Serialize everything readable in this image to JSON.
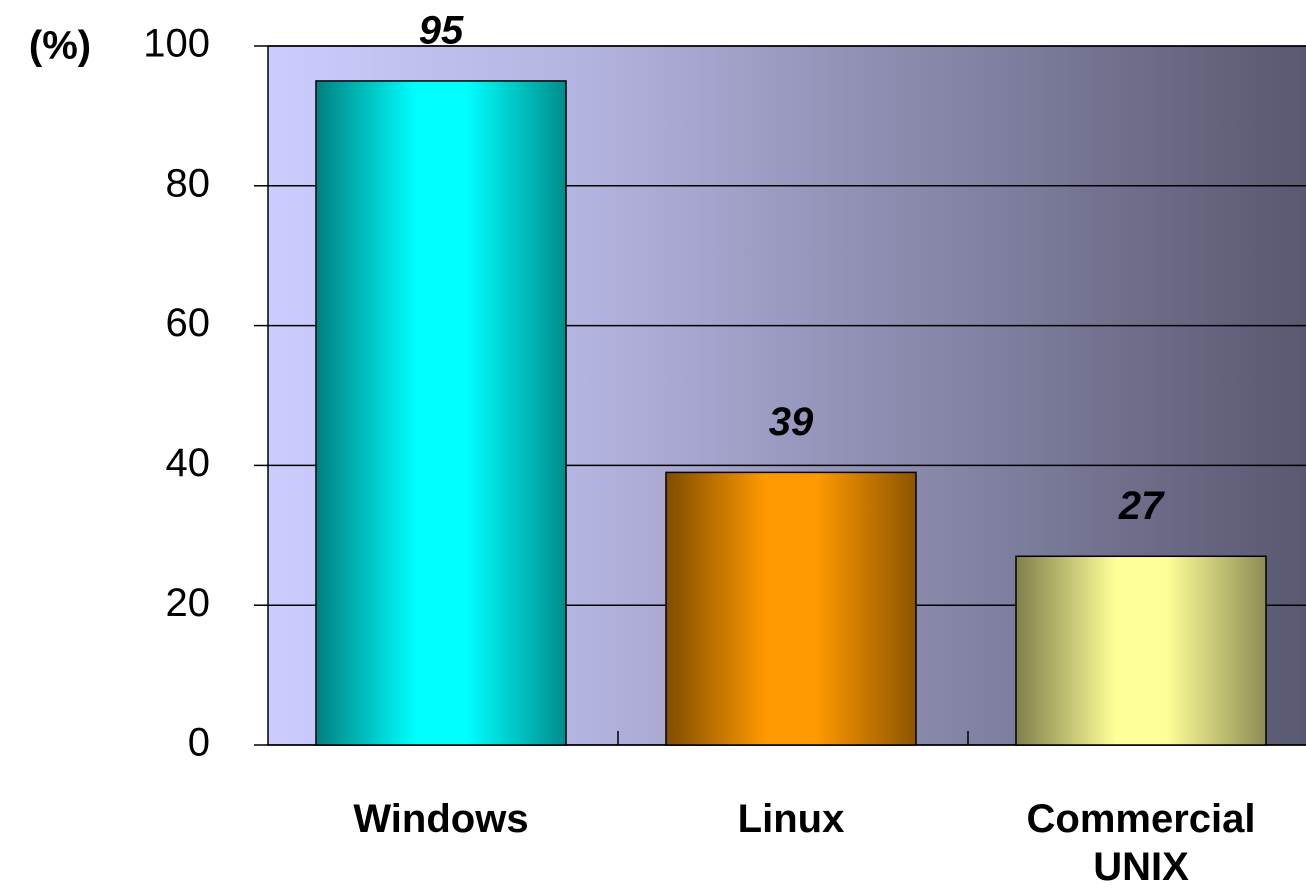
{
  "chart_data": {
    "type": "bar",
    "y_label": "(%)",
    "categories": [
      "Windows",
      "Linux",
      "Commercial UNIX"
    ],
    "values": [
      95,
      39,
      27
    ],
    "colors": [
      "#00ffff",
      "#ff9900",
      "#ffff99"
    ],
    "ylim": [
      0,
      100
    ],
    "yticks": [
      0,
      20,
      40,
      60,
      80,
      100
    ],
    "grid": true
  }
}
